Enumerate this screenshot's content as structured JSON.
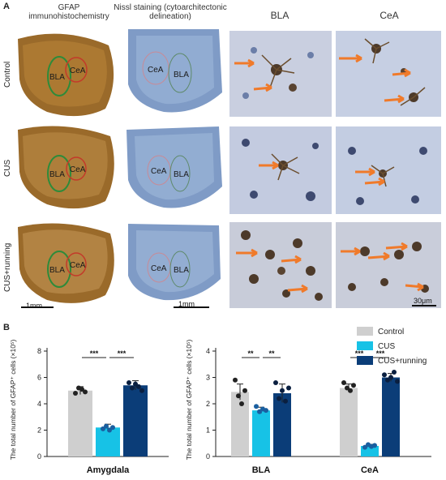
{
  "panel_a": {
    "letter": "A",
    "column_headers": {
      "gfap": "GFAP immunohistochemistry",
      "nissl": "Nissl staining (cytoarchitectonic delineation)",
      "bla": "BLA",
      "cea": "CeA"
    },
    "row_labels": [
      "Control",
      "CUS",
      "CUS+running"
    ],
    "region_labels": {
      "bla": "BLA",
      "cea": "CeA"
    },
    "scale_bars": {
      "gfap": "1mm",
      "nissl": "1mm",
      "micro": "30μm"
    },
    "colors": {
      "gfap_tissue": "#9a6a2a",
      "nissl_tissue": "#7f9bc6",
      "micro_bg": "#c9cfe0",
      "arrow": "#f07a2a",
      "bla_outline": "#2e8b3a",
      "cea_outline": "#c33a2a"
    }
  },
  "panel_b": {
    "letter": "B",
    "legend": [
      {
        "label": "Control",
        "color": "#cfcfcf"
      },
      {
        "label": "CUS",
        "color": "#17c2e6"
      },
      {
        "label": "CUS+running",
        "color": "#0b3d78"
      }
    ]
  },
  "chart_data": [
    {
      "type": "bar",
      "categories": [
        "Amygdala"
      ],
      "series": [
        {
          "name": "Control",
          "values": [
            5.0
          ],
          "err": [
            0.3
          ],
          "points": [
            [
              4.8,
              5.2,
              5.1,
              4.9
            ]
          ]
        },
        {
          "name": "CUS",
          "values": [
            2.2
          ],
          "err": [
            0.25
          ],
          "points": [
            [
              2.1,
              2.3,
              2.0,
              2.2
            ]
          ]
        },
        {
          "name": "CUS+running",
          "values": [
            5.4
          ],
          "err": [
            0.35
          ],
          "points": [
            [
              5.6,
              5.2,
              5.5,
              5.3,
              5.0
            ]
          ]
        }
      ],
      "ylabel": "The total number of GFAP⁺ cells (×10⁵)",
      "ylim": [
        0,
        8
      ],
      "yticks": [
        0,
        2,
        4,
        6,
        8
      ],
      "significance": [
        {
          "pair": [
            0,
            1
          ],
          "label": "***"
        },
        {
          "pair": [
            1,
            2
          ],
          "label": "***"
        }
      ]
    },
    {
      "type": "bar",
      "categories": [
        "BLA",
        "CeA"
      ],
      "series": [
        {
          "name": "Control",
          "values": [
            2.45,
            2.6
          ],
          "err": [
            0.3,
            0.15
          ],
          "points": [
            [
              2.9,
              2.3,
              2.0,
              2.5
            ],
            [
              2.8,
              2.6,
              2.5,
              2.7
            ]
          ]
        },
        {
          "name": "CUS",
          "values": [
            1.75,
            0.4
          ],
          "err": [
            0.12,
            0.06
          ],
          "points": [
            [
              1.9,
              1.7,
              1.8,
              1.75
            ],
            [
              0.35,
              0.45,
              0.38,
              0.42
            ]
          ]
        },
        {
          "name": "CUS+running",
          "values": [
            2.4,
            3.0
          ],
          "err": [
            0.35,
            0.15
          ],
          "points": [
            [
              2.8,
              2.2,
              2.5,
              2.1,
              2.6
            ],
            [
              3.1,
              2.9,
              3.0,
              3.2,
              2.85
            ]
          ]
        }
      ],
      "ylabel": "The total number of GFAP⁺ cells (×10⁵)",
      "ylim": [
        0,
        4
      ],
      "yticks": [
        0,
        1,
        2,
        3,
        4
      ],
      "significance": [
        {
          "category": 0,
          "pair": [
            0,
            1
          ],
          "label": "**"
        },
        {
          "category": 0,
          "pair": [
            1,
            2
          ],
          "label": "**"
        },
        {
          "category": 1,
          "pair": [
            0,
            1
          ],
          "label": "***"
        },
        {
          "category": 1,
          "pair": [
            1,
            2
          ],
          "label": "***"
        }
      ]
    }
  ]
}
